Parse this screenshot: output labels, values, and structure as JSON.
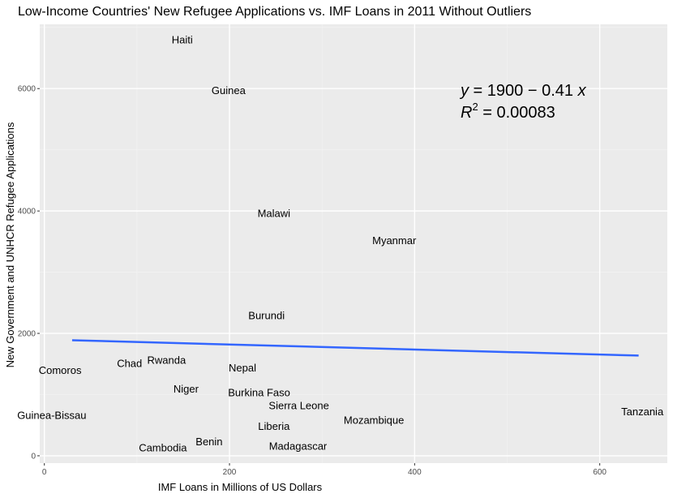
{
  "chart_data": {
    "type": "scatter",
    "title": "Low-Income Countries' New Refugee Applications vs. IMF Loans in 2011 Without Outliers",
    "xlabel": "IMF Loans in Millions of US Dollars",
    "ylabel": "New Government and UNHCR Refugee Applications",
    "xlim": [
      -5,
      673
    ],
    "ylim": [
      -120,
      7050
    ],
    "x_ticks": [
      0,
      200,
      400,
      600
    ],
    "y_ticks": [
      0,
      2000,
      4000,
      6000
    ],
    "grid": true,
    "points": [
      {
        "label": "Haiti",
        "x": 149,
        "y": 6800
      },
      {
        "label": "Guinea",
        "x": 199,
        "y": 5970
      },
      {
        "label": "Malawi",
        "x": 248,
        "y": 3960
      },
      {
        "label": "Myanmar",
        "x": 378,
        "y": 3520
      },
      {
        "label": "Burundi",
        "x": 240,
        "y": 2290
      },
      {
        "label": "Comoros",
        "x": 17,
        "y": 1400
      },
      {
        "label": "Chad",
        "x": 92,
        "y": 1510
      },
      {
        "label": "Rwanda",
        "x": 132,
        "y": 1560
      },
      {
        "label": "Nepal",
        "x": 214,
        "y": 1440
      },
      {
        "label": "Niger",
        "x": 153,
        "y": 1090
      },
      {
        "label": "Burkina Faso",
        "x": 232,
        "y": 1030
      },
      {
        "label": "Sierra Leone",
        "x": 275,
        "y": 820
      },
      {
        "label": "Guinea-Bissau",
        "x": 8,
        "y": 660
      },
      {
        "label": "Mozambique",
        "x": 356,
        "y": 580
      },
      {
        "label": "Tanzania",
        "x": 646,
        "y": 720
      },
      {
        "label": "Liberia",
        "x": 248,
        "y": 480
      },
      {
        "label": "Benin",
        "x": 178,
        "y": 230
      },
      {
        "label": "Cambodia",
        "x": 128,
        "y": 130
      },
      {
        "label": "Madagascar",
        "x": 274,
        "y": 160
      }
    ],
    "fit_line": {
      "x": [
        30,
        642
      ],
      "y": [
        1888,
        1637
      ],
      "color": "#3366FF"
    },
    "annotation": {
      "eq_y": "y",
      "eq_rest": " = 1900 − 0.41 ",
      "eq_x": "x",
      "r2_prefix": "R",
      "r2_sup": "2",
      "r2_rest": " = 0.00083"
    }
  },
  "colors": {
    "panel": "#EBEBEB",
    "grid_major": "#FFFFFF",
    "grid_minor": "#F2F2F2",
    "fit": "#3366FF"
  }
}
